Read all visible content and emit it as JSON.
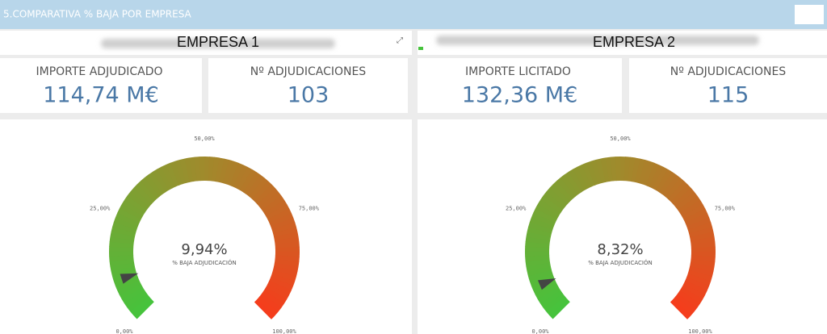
{
  "header": {
    "title": "5.COMPARATIVA % BAJA POR EMPRESA"
  },
  "panels": [
    {
      "title": "EMPRESA 1",
      "kpis": [
        {
          "label": "IMPORTE ADJUDICADO",
          "value": "114,74 M€"
        },
        {
          "label": "Nº ADJUDICACIONES",
          "value": "103"
        }
      ],
      "gauge": {
        "value": 9.94,
        "value_label": "9,94%",
        "caption": "% BAJA ADJUDICACIÓN",
        "range": [
          0,
          100
        ],
        "ticks": [
          {
            "value": 0,
            "label": "0,00%"
          },
          {
            "value": 25,
            "label": "25,00%"
          },
          {
            "value": 50,
            "label": "50,00%"
          },
          {
            "value": 75,
            "label": "75,00%"
          },
          {
            "value": 100,
            "label": "100,00%"
          }
        ],
        "colors": [
          "#46c33c",
          "#a08a2c",
          "#f53d1c"
        ]
      }
    },
    {
      "title": "EMPRESA 2",
      "kpis": [
        {
          "label": "IMPORTE LICITADO",
          "value": "132,36 M€"
        },
        {
          "label": "Nº ADJUDICACIONES",
          "value": "115"
        }
      ],
      "gauge": {
        "value": 8.32,
        "value_label": "8,32%",
        "caption": "% BAJA ADJUDICACIÓN",
        "range": [
          0,
          100
        ],
        "ticks": [
          {
            "value": 0,
            "label": "0,00%"
          },
          {
            "value": 25,
            "label": "25,00%"
          },
          {
            "value": 50,
            "label": "50,00%"
          },
          {
            "value": 75,
            "label": "75,00%"
          },
          {
            "value": 100,
            "label": "100,00%"
          }
        ],
        "colors": [
          "#46c33c",
          "#a08a2c",
          "#f53d1c"
        ]
      }
    }
  ]
}
